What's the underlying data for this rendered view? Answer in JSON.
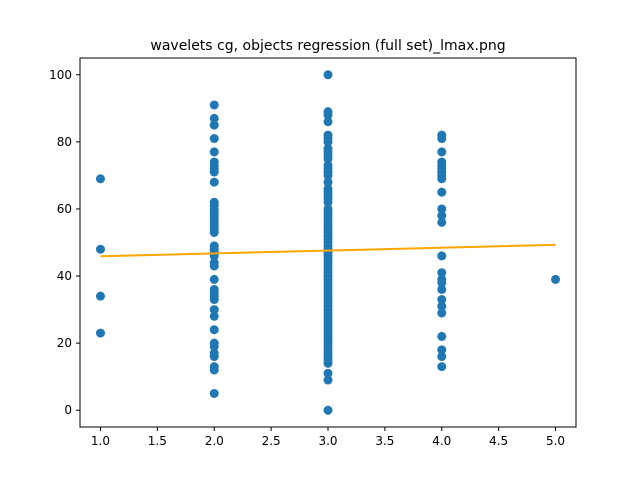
{
  "chart_data": {
    "type": "scatter",
    "title": "wavelets cg, objects regression (full set)_lmax.png",
    "xlabel": "",
    "ylabel": "",
    "xlim": [
      0.82,
      5.18
    ],
    "ylim": [
      -5,
      105
    ],
    "xticks": [
      1.0,
      1.5,
      2.0,
      2.5,
      3.0,
      3.5,
      4.0,
      4.5,
      5.0
    ],
    "xtick_labels": [
      "1.0",
      "1.5",
      "2.0",
      "2.5",
      "3.0",
      "3.5",
      "4.0",
      "4.5",
      "5.0"
    ],
    "yticks": [
      0,
      20,
      40,
      60,
      80,
      100
    ],
    "ytick_labels": [
      "0",
      "20",
      "40",
      "60",
      "80",
      "100"
    ],
    "grid": false,
    "legend": "none",
    "series": [
      {
        "kind": "scatter",
        "color": "#1f77b4",
        "points": [
          [
            1,
            69
          ],
          [
            1,
            48
          ],
          [
            1,
            34
          ],
          [
            1,
            23
          ],
          [
            2,
            91
          ],
          [
            2,
            87
          ],
          [
            2,
            85
          ],
          [
            2,
            81
          ],
          [
            2,
            77
          ],
          [
            2,
            74
          ],
          [
            2,
            73
          ],
          [
            2,
            72
          ],
          [
            2,
            71
          ],
          [
            2,
            68
          ],
          [
            2,
            62
          ],
          [
            2,
            61
          ],
          [
            2,
            60
          ],
          [
            2,
            59
          ],
          [
            2,
            58
          ],
          [
            2,
            57
          ],
          [
            2,
            56
          ],
          [
            2,
            55
          ],
          [
            2,
            54
          ],
          [
            2,
            53
          ],
          [
            2,
            49
          ],
          [
            2,
            48
          ],
          [
            2,
            47
          ],
          [
            2,
            46
          ],
          [
            2,
            44
          ],
          [
            2,
            43
          ],
          [
            2,
            39
          ],
          [
            2,
            36
          ],
          [
            2,
            35
          ],
          [
            2,
            34
          ],
          [
            2,
            33
          ],
          [
            2,
            30
          ],
          [
            2,
            28
          ],
          [
            2,
            24
          ],
          [
            2,
            20
          ],
          [
            2,
            19
          ],
          [
            2,
            17
          ],
          [
            2,
            16
          ],
          [
            2,
            13
          ],
          [
            2,
            12
          ],
          [
            2,
            5
          ],
          [
            3,
            100
          ],
          [
            3,
            89
          ],
          [
            3,
            88
          ],
          [
            3,
            86
          ],
          [
            3,
            82
          ],
          [
            3,
            81
          ],
          [
            3,
            80
          ],
          [
            3,
            78
          ],
          [
            3,
            77
          ],
          [
            3,
            76
          ],
          [
            3,
            75
          ],
          [
            3,
            73
          ],
          [
            3,
            72
          ],
          [
            3,
            71
          ],
          [
            3,
            70
          ],
          [
            3,
            68
          ],
          [
            3,
            66
          ],
          [
            3,
            65
          ],
          [
            3,
            64
          ],
          [
            3,
            63
          ],
          [
            3,
            62
          ],
          [
            3,
            60
          ],
          [
            3,
            59
          ],
          [
            3,
            58
          ],
          [
            3,
            57
          ],
          [
            3,
            56
          ],
          [
            3,
            55
          ],
          [
            3,
            54
          ],
          [
            3,
            53
          ],
          [
            3,
            52
          ],
          [
            3,
            51
          ],
          [
            3,
            50
          ],
          [
            3,
            49
          ],
          [
            3,
            48
          ],
          [
            3,
            47
          ],
          [
            3,
            46
          ],
          [
            3,
            45
          ],
          [
            3,
            44
          ],
          [
            3,
            43
          ],
          [
            3,
            42
          ],
          [
            3,
            41
          ],
          [
            3,
            40
          ],
          [
            3,
            39
          ],
          [
            3,
            38
          ],
          [
            3,
            37
          ],
          [
            3,
            36
          ],
          [
            3,
            35
          ],
          [
            3,
            34
          ],
          [
            3,
            33
          ],
          [
            3,
            32
          ],
          [
            3,
            31
          ],
          [
            3,
            30
          ],
          [
            3,
            29
          ],
          [
            3,
            28
          ],
          [
            3,
            27
          ],
          [
            3,
            26
          ],
          [
            3,
            25
          ],
          [
            3,
            24
          ],
          [
            3,
            23
          ],
          [
            3,
            22
          ],
          [
            3,
            21
          ],
          [
            3,
            20
          ],
          [
            3,
            19
          ],
          [
            3,
            18
          ],
          [
            3,
            17
          ],
          [
            3,
            16
          ],
          [
            3,
            15
          ],
          [
            3,
            14
          ],
          [
            3,
            11
          ],
          [
            3,
            9
          ],
          [
            3,
            0
          ],
          [
            4,
            82
          ],
          [
            4,
            81
          ],
          [
            4,
            77
          ],
          [
            4,
            74
          ],
          [
            4,
            73
          ],
          [
            4,
            72
          ],
          [
            4,
            71
          ],
          [
            4,
            70
          ],
          [
            4,
            69
          ],
          [
            4,
            65
          ],
          [
            4,
            60
          ],
          [
            4,
            58
          ],
          [
            4,
            56
          ],
          [
            4,
            46
          ],
          [
            4,
            41
          ],
          [
            4,
            39
          ],
          [
            4,
            38
          ],
          [
            4,
            36
          ],
          [
            4,
            33
          ],
          [
            4,
            31
          ],
          [
            4,
            29
          ],
          [
            4,
            22
          ],
          [
            4,
            18
          ],
          [
            4,
            16
          ],
          [
            4,
            13
          ],
          [
            5,
            39
          ]
        ]
      },
      {
        "kind": "line",
        "color": "#ffa500",
        "x": [
          1,
          5
        ],
        "y": [
          45.9,
          49.3
        ]
      }
    ]
  }
}
